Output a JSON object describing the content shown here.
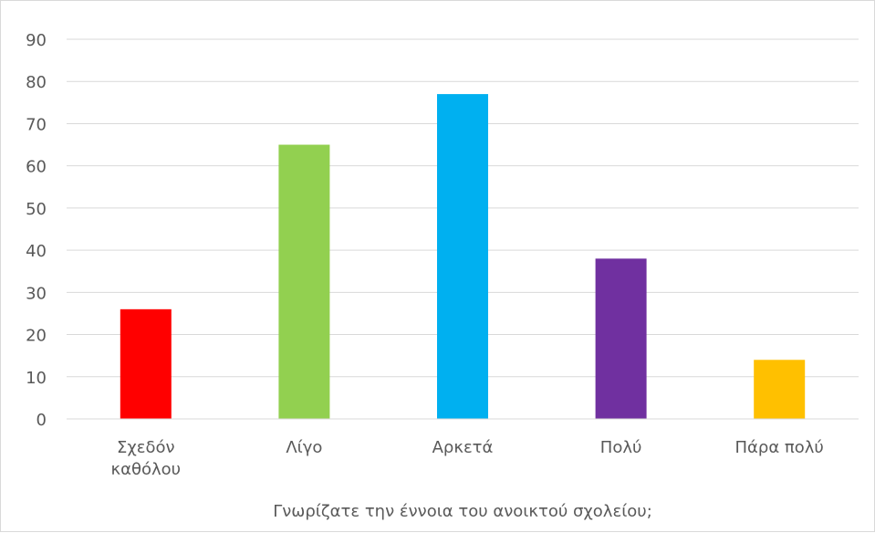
{
  "chart_data": {
    "type": "bar",
    "categories": [
      [
        "Σχεδόν",
        "καθόλου"
      ],
      [
        "Λίγο"
      ],
      [
        "Αρκετά"
      ],
      [
        "Πολύ"
      ],
      [
        "Πάρα πολύ"
      ]
    ],
    "values": [
      26,
      65,
      77,
      38,
      14
    ],
    "colors": [
      "#ff0000",
      "#92d050",
      "#00b0f0",
      "#7030a0",
      "#ffc000"
    ],
    "title": "",
    "xlabel": "Γνωρίζατε την έννοια  του ανοικτού σχολείου;",
    "ylabel": "",
    "ylim": [
      0,
      90
    ],
    "yticks": [
      0,
      10,
      20,
      30,
      40,
      50,
      60,
      70,
      80,
      90
    ],
    "grid": true,
    "legend": "none"
  }
}
